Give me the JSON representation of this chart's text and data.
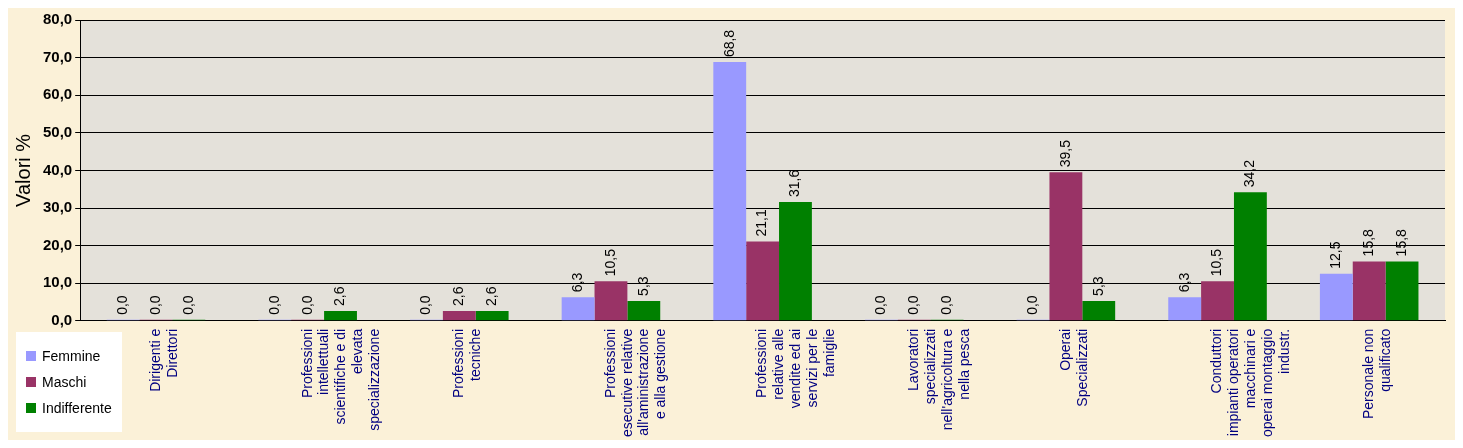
{
  "chart_data": {
    "type": "bar",
    "ylabel": "Valori %",
    "categories": [
      "Dirigenti e\nDirettori",
      "Professioni\nintellettuali\nscientifiche e di\nelevata\nspecializzazione",
      "Professioni\ntecniche",
      "Professioni\nesecutive relative\nall'aministrazione\ne alla gestione",
      "Professioni\nrelative alle\nvendite ed ai\nservizi per le\nfamiglie",
      "Lavoratori\nspecializzati\nnell'agricoltura e\nnella pesca",
      "Operai\nSpecializzati",
      "Conduttori\nimpianti operatori\nmacchinari e\noperai montaggio\nindustr.",
      "Personale non\nqualificato"
    ],
    "series": [
      {
        "name": "Femmine",
        "color": "#9999ff",
        "values": [
          0,
          0,
          0,
          6.3,
          68.8,
          0,
          0,
          6.3,
          12.5
        ],
        "value_labels": [
          "0,0",
          "0,0",
          "0,0",
          "6,3",
          "68,8",
          "0,0",
          "0,0",
          "6,3",
          "12,5"
        ]
      },
      {
        "name": "Maschi",
        "color": "#993366",
        "values": [
          0,
          0,
          2.6,
          10.5,
          21.1,
          0,
          39.5,
          10.5,
          15.8
        ],
        "value_labels": [
          "0,0",
          "0,0",
          "2,6",
          "10,5",
          "21,1",
          "0,0",
          "39,5",
          "10,5",
          "15,8"
        ]
      },
      {
        "name": "Indifferente",
        "color": "#008000",
        "values": [
          0,
          2.6,
          2.6,
          5.3,
          31.6,
          0,
          5.3,
          34.2,
          15.8
        ],
        "value_labels": [
          "0,0",
          "2,6",
          "2,6",
          "5,3",
          "31,6",
          "0,0",
          "5,3",
          "34,2",
          "15,8"
        ]
      }
    ],
    "ylim": [
      0,
      80
    ],
    "yticks": [
      {
        "value": 0,
        "label": "0,0"
      },
      {
        "value": 10,
        "label": "10,0"
      },
      {
        "value": 20,
        "label": "20,0"
      },
      {
        "value": 30,
        "label": "30,0"
      },
      {
        "value": 40,
        "label": "40,0"
      },
      {
        "value": 50,
        "label": "50,0"
      },
      {
        "value": 60,
        "label": "60,0"
      },
      {
        "value": 70,
        "label": "70,0"
      },
      {
        "value": 80,
        "label": "80,0"
      }
    ],
    "grid": "y",
    "legend": "bottom left"
  }
}
